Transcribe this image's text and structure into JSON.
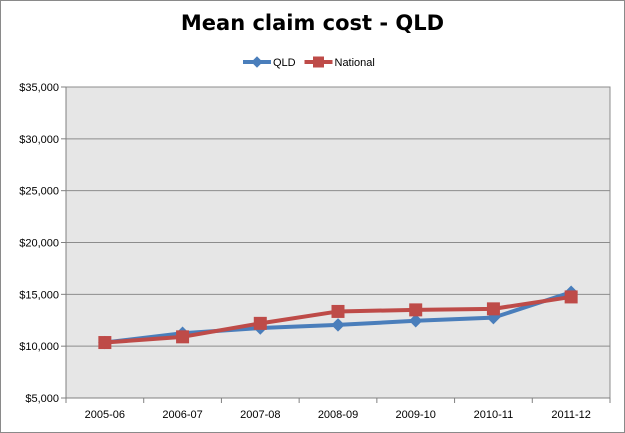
{
  "chart_data": {
    "type": "line",
    "title": "Mean claim cost - QLD",
    "xlabel": "",
    "ylabel": "",
    "categories": [
      "2005-06",
      "2006-07",
      "2007-08",
      "2008-09",
      "2009-10",
      "2010-11",
      "2011-12"
    ],
    "series": [
      {
        "name": "QLD",
        "color": "#4a7ebb",
        "marker": "diamond",
        "values": [
          10350,
          11250,
          11750,
          12050,
          12450,
          12750,
          15200
        ]
      },
      {
        "name": "National",
        "color": "#be4b48",
        "marker": "square",
        "values": [
          10350,
          10900,
          12200,
          13350,
          13500,
          13600,
          14750
        ]
      }
    ],
    "ylim": [
      5000,
      35000
    ],
    "yticks": [
      5000,
      10000,
      15000,
      20000,
      25000,
      30000,
      35000
    ],
    "ytick_labels": [
      "$5,000",
      "$10,000",
      "$15,000",
      "$20,000",
      "$25,000",
      "$30,000",
      "$35,000"
    ],
    "grid": true,
    "legend_position": "top",
    "plot_background": "#e6e6e6",
    "gridline_color": "#8c8c8c"
  }
}
